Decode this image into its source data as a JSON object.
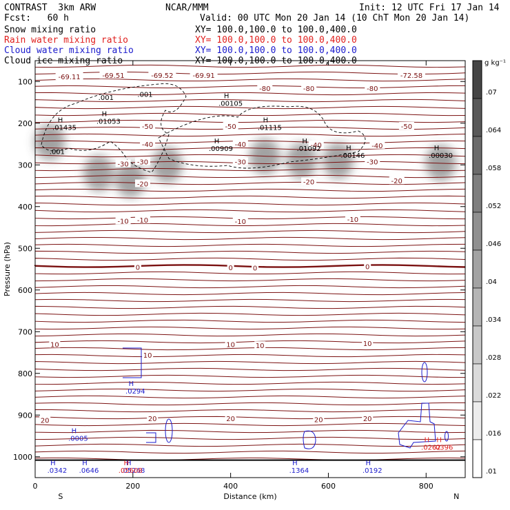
{
  "header": {
    "model": "CONTRAST  3km ARW",
    "fcst": "Fcst:   60 h",
    "org": "NCAR/MMM",
    "init": "Init: 12 UTC Fri 17 Jan 14",
    "valid": "Valid: 00 UTC Mon 20 Jan 14 (10 ChT Mon 20 Jan 14)",
    "fields": [
      {
        "label": "Snow mixing ratio",
        "xy": "XY= 100.0,100.0 to 100.0,400.0",
        "color": "#000000"
      },
      {
        "label": "Rain water mixing ratio",
        "xy": "XY= 100.0,100.0 to 100.0,400.0",
        "color": "#e0201e"
      },
      {
        "label": "Cloud water mixing ratio",
        "xy": "XY= 100.0,100.0 to 100.0,400.0",
        "color": "#1a1acc"
      },
      {
        "label": "Cloud ice mixing ratio",
        "xy": "XY= 100.0,100.0 to 100.0,400.0",
        "color": "#000000"
      }
    ]
  },
  "colors": {
    "temperature": "#7a1010",
    "cloud_water": "#1a1acc",
    "rain": "#e0201e",
    "ice": "#000000"
  },
  "chart_data": {
    "type": "heatmap",
    "xlabel": "Distance (km)",
    "ylabel": "Pressure (hPa)",
    "xlim": [
      0,
      880
    ],
    "ylim": [
      1050,
      50
    ],
    "x_ticks": [
      0,
      200,
      400,
      600,
      800
    ],
    "y_ticks": [
      100,
      200,
      300,
      400,
      500,
      600,
      700,
      800,
      900,
      1000
    ],
    "x_end_labels": {
      "left": "S",
      "right": "N"
    },
    "colorbar": {
      "unit": "g kg⁻¹",
      "ticks": [
        ".07",
        ".064",
        ".058",
        ".052",
        ".046",
        ".04",
        ".034",
        ".028",
        ".022",
        ".016",
        ".01"
      ]
    },
    "temperature_contours": [
      {
        "label": "-69.11",
        "x": 70,
        "p": 88
      },
      {
        "label": "-69.51",
        "x": 160,
        "p": 85
      },
      {
        "label": "-69.52",
        "x": 260,
        "p": 85
      },
      {
        "label": "-69.91",
        "x": 345,
        "p": 85
      },
      {
        "label": "-72.58",
        "x": 770,
        "p": 85
      },
      {
        "label": "-80",
        "x": 470,
        "p": 116
      },
      {
        "label": "-80",
        "x": 560,
        "p": 116
      },
      {
        "label": "-80",
        "x": 690,
        "p": 116
      },
      {
        "label": "-50",
        "x": 230,
        "p": 207
      },
      {
        "label": "-50",
        "x": 400,
        "p": 207
      },
      {
        "label": "-50",
        "x": 760,
        "p": 207
      },
      {
        "label": "-40",
        "x": 230,
        "p": 250
      },
      {
        "label": "-40",
        "x": 420,
        "p": 250
      },
      {
        "label": "-40",
        "x": 575,
        "p": 252
      },
      {
        "label": "-40",
        "x": 700,
        "p": 253
      },
      {
        "label": "-30",
        "x": 180,
        "p": 297
      },
      {
        "label": "-30",
        "x": 220,
        "p": 292
      },
      {
        "label": "-30",
        "x": 420,
        "p": 292
      },
      {
        "label": "-30",
        "x": 690,
        "p": 292
      },
      {
        "label": "-20",
        "x": 220,
        "p": 345
      },
      {
        "label": "-20",
        "x": 560,
        "p": 340
      },
      {
        "label": "-20",
        "x": 740,
        "p": 338
      },
      {
        "label": "-10",
        "x": 180,
        "p": 434
      },
      {
        "label": "-10",
        "x": 220,
        "p": 432
      },
      {
        "label": "-10",
        "x": 420,
        "p": 435
      },
      {
        "label": "-10",
        "x": 650,
        "p": 430
      },
      {
        "label": "0",
        "x": 210,
        "p": 545
      },
      {
        "label": "0",
        "x": 400,
        "p": 546
      },
      {
        "label": "0",
        "x": 450,
        "p": 547
      },
      {
        "label": "0",
        "x": 680,
        "p": 543
      },
      {
        "label": "10",
        "x": 40,
        "p": 730
      },
      {
        "label": "10",
        "x": 230,
        "p": 756
      },
      {
        "label": "10",
        "x": 400,
        "p": 730
      },
      {
        "label": "10",
        "x": 460,
        "p": 733
      },
      {
        "label": "10",
        "x": 680,
        "p": 728
      },
      {
        "label": "20",
        "x": 20,
        "p": 912
      },
      {
        "label": "20",
        "x": 240,
        "p": 908
      },
      {
        "label": "20",
        "x": 400,
        "p": 908
      },
      {
        "label": "20",
        "x": 580,
        "p": 910
      },
      {
        "label": "20",
        "x": 680,
        "p": 908
      }
    ],
    "snow_maxima": [
      {
        "label": ".01435",
        "x": 60,
        "p": 208
      },
      {
        "label": ".01053",
        "x": 150,
        "p": 193
      },
      {
        "label": ".00105",
        "x": 400,
        "p": 150
      },
      {
        "label": ".01115",
        "x": 480,
        "p": 208
      },
      {
        "label": ".00909",
        "x": 380,
        "p": 258
      },
      {
        "label": ".01092",
        "x": 560,
        "p": 258
      },
      {
        "label": ".00146",
        "x": 650,
        "p": 275
      },
      {
        "label": ".00030",
        "x": 830,
        "p": 275
      }
    ],
    "ice_contour_labels": [
      {
        "label": ".001",
        "x": 145,
        "p": 138
      },
      {
        "label": ".001",
        "x": 225,
        "p": 130
      },
      {
        "label": ".001",
        "x": 45,
        "p": 267
      }
    ],
    "cloud_water_maxima": [
      {
        "label": ".0294",
        "x": 205,
        "p": 840
      },
      {
        "label": ".0005",
        "x": 88,
        "p": 953
      },
      {
        "label": ".0342",
        "x": 45,
        "p": 1030
      },
      {
        "label": ".0646",
        "x": 110,
        "p": 1030
      },
      {
        "label": ".05268",
        "x": 200,
        "p": 1030
      },
      {
        "label": ".1364",
        "x": 540,
        "p": 1030
      },
      {
        "label": ".0192",
        "x": 690,
        "p": 1030
      }
    ],
    "rain_maxima": [
      {
        "label": ".05608",
        "x": 195,
        "p": 1030
      },
      {
        "label": ".0262",
        "x": 810,
        "p": 975
      },
      {
        "label": ".0396",
        "x": 835,
        "p": 975
      }
    ],
    "snow_shading_centers": [
      {
        "x": 30,
        "p": 245
      },
      {
        "x": 130,
        "p": 320
      },
      {
        "x": 195,
        "p": 335
      },
      {
        "x": 270,
        "p": 300
      },
      {
        "x": 470,
        "p": 280
      },
      {
        "x": 545,
        "p": 290
      },
      {
        "x": 620,
        "p": 290
      },
      {
        "x": 830,
        "p": 295
      }
    ]
  }
}
